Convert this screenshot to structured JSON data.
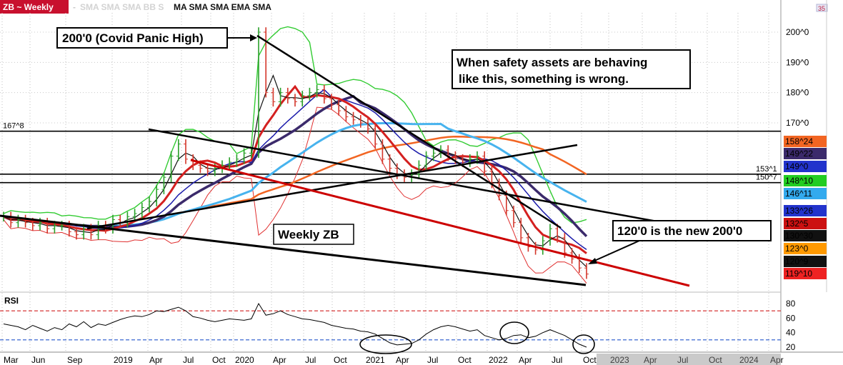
{
  "header": {
    "symbol_label": "ZB ~ Weekly",
    "separator": "-",
    "indicators_faded": "SMA SMA SMA BB S",
    "indicators": "MA SMA SMA EMA SMA",
    "corner_badge": "35"
  },
  "annotations": {
    "covid_high": "200'0 (Covid Panic High)",
    "safety_line1": "When safety assets are behaving",
    "safety_line2": "like this, something is wrong.",
    "weekly_zb": "Weekly ZB",
    "new_200": "120'0 is the new 200'0"
  },
  "chart_data": {
    "type": "line",
    "title": "ZB ~ Weekly",
    "price_axis": {
      "ticks": [
        "200^0",
        "190^0",
        "180^0",
        "170^0"
      ],
      "tick_values": [
        200,
        190,
        180,
        170
      ],
      "range": [
        116,
        205
      ]
    },
    "time_axis": {
      "labels": [
        "Mar",
        "Jun",
        "Sep",
        "2019",
        "Apr",
        "Jul",
        "Oct",
        "2020",
        "Apr",
        "Jul",
        "Oct",
        "2021",
        "Apr",
        "Jul",
        "Oct",
        "2022",
        "Apr",
        "Jul",
        "Oct",
        "2023",
        "Apr",
        "Jul",
        "Oct",
        "2024",
        "Apr"
      ],
      "year_labels": [
        "2019",
        "2020",
        "2021",
        "2022",
        "2023",
        "2024"
      ]
    },
    "horizontal_levels": [
      {
        "label": "167^8",
        "value": 167.25
      },
      {
        "label": "153^1",
        "value": 153.03
      },
      {
        "label": "150^7",
        "value": 150.22
      }
    ],
    "price_tags": [
      {
        "text": "158^24",
        "color": "#f26522"
      },
      {
        "text": "149^22",
        "color": "#3b2a6b"
      },
      {
        "text": "149^0",
        "color": "#2233cc"
      },
      {
        "text": "148^10",
        "color": "#22cc22"
      },
      {
        "text": "146^11",
        "color": "#33aaee"
      },
      {
        "text": "133^26",
        "color": "#2233cc"
      },
      {
        "text": "132^5",
        "color": "#cc1111"
      },
      {
        "text": "130^30",
        "color": "#111111"
      },
      {
        "text": "123^0",
        "color": "#ff9900"
      },
      {
        "text": "120^9",
        "color": "#111111"
      },
      {
        "text": "119^10",
        "color": "#ee2222"
      }
    ],
    "price_series": [
      139,
      137,
      138,
      137,
      136,
      137,
      135,
      136,
      136,
      134,
      133,
      135,
      133,
      136,
      135,
      138,
      137,
      139,
      140,
      142,
      144,
      148,
      152,
      159,
      163,
      158,
      156,
      155,
      154,
      155,
      156,
      157,
      158,
      160,
      160,
      200,
      180,
      177,
      180,
      178,
      177,
      179,
      180,
      181,
      178,
      176,
      174,
      172,
      171,
      170,
      168,
      163,
      158,
      155,
      153,
      152,
      153,
      156,
      159,
      160,
      161,
      159,
      158,
      157,
      158,
      159,
      154,
      150,
      146,
      141,
      137,
      132,
      129,
      128,
      131,
      135,
      132,
      127,
      125,
      122,
      120
    ],
    "rsi": {
      "label": "RSI",
      "ticks": [
        80,
        60,
        40,
        20
      ],
      "overbought": 70,
      "oversold": 30,
      "values": [
        52,
        50,
        48,
        44,
        50,
        46,
        42,
        47,
        44,
        52,
        48,
        55,
        47,
        52,
        50,
        54,
        58,
        61,
        63,
        62,
        65,
        70,
        69,
        72,
        75,
        70,
        62,
        60,
        57,
        55,
        57,
        59,
        58,
        57,
        59,
        80,
        64,
        66,
        70,
        65,
        62,
        59,
        58,
        56,
        54,
        50,
        48,
        46,
        45,
        42,
        41,
        38,
        32,
        26,
        23,
        24,
        25,
        30,
        38,
        44,
        48,
        50,
        48,
        45,
        42,
        44,
        36,
        33,
        30,
        32,
        36,
        37,
        33,
        35,
        40,
        44,
        40,
        36,
        30,
        24,
        20
      ]
    }
  },
  "colors": {
    "price_bars": "#d4362a",
    "sma_black": "#111111",
    "sma_red": "#d42020",
    "sma_blue": "#1a1aaa",
    "sma_lightblue": "#47b3ee",
    "sma_orange": "#f26522",
    "bollinger": "#33cc33",
    "trendline_black": "#000000",
    "trendline_red": "#cc0000"
  }
}
